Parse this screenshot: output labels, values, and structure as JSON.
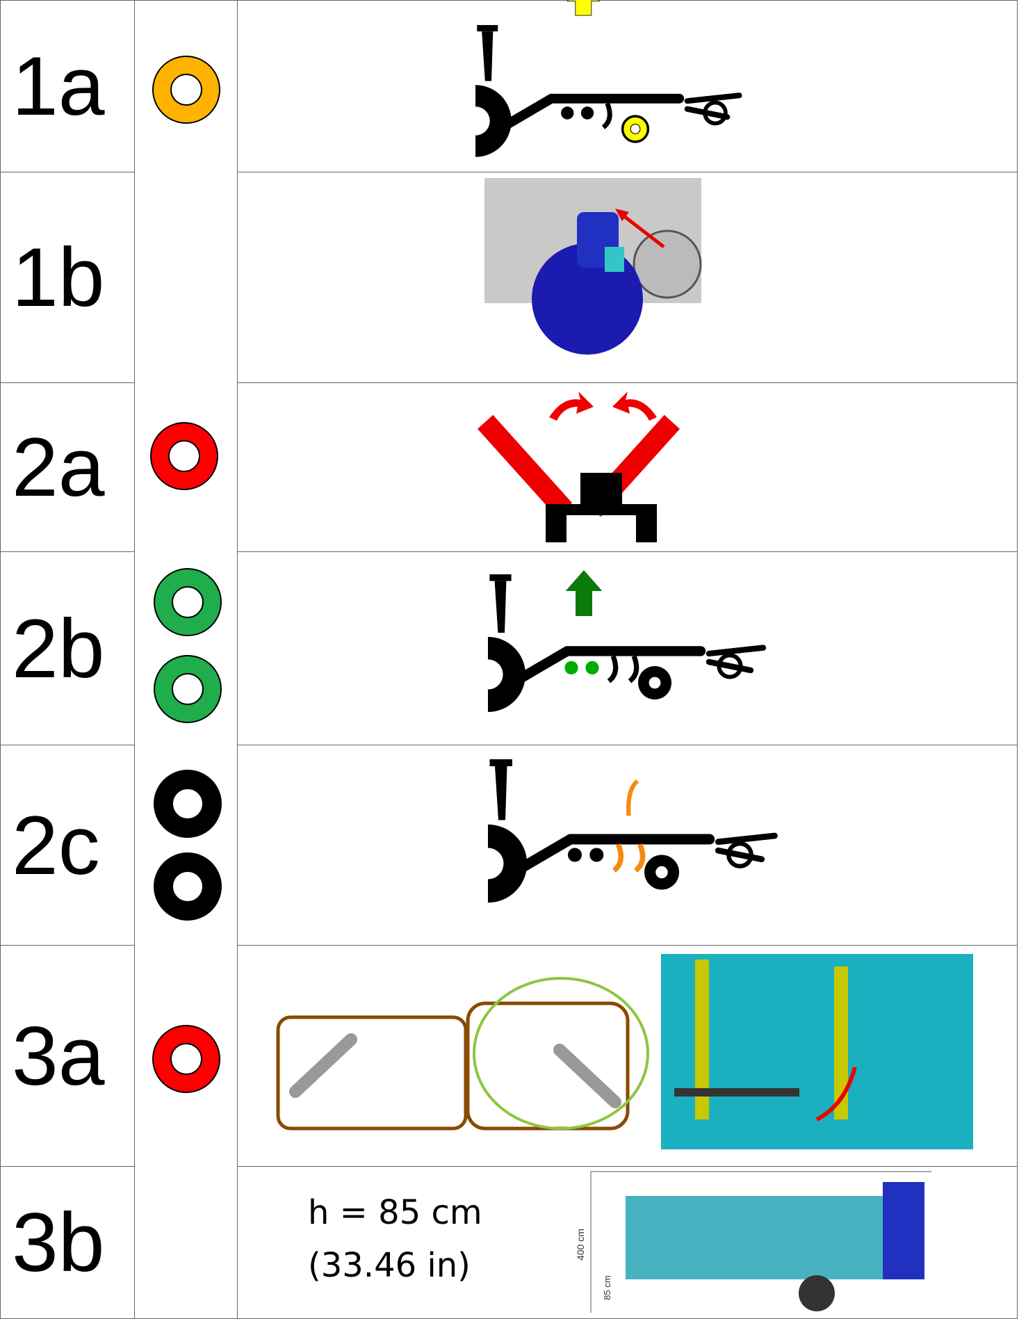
{
  "table": {
    "rows": [
      {
        "label": "1a"
      },
      {
        "label": "1b"
      },
      {
        "label": "2a"
      },
      {
        "label": "2b"
      },
      {
        "label": "2c"
      },
      {
        "label": "3a"
      },
      {
        "label": "3b",
        "text": [
          "h = 85 cm",
          "(33.46 in)"
        ],
        "dimension_labels": [
          "400 cm",
          "85 cm"
        ]
      }
    ]
  }
}
